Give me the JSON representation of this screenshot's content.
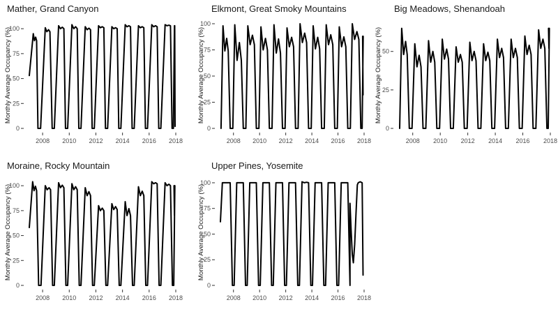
{
  "chart_data": [
    {
      "type": "line",
      "title": "Mather, Grand Canyon",
      "ylabel": "Monthly Average Occupancy (%)",
      "xlabel": "",
      "x_ticks": [
        "2008",
        "2010",
        "2012",
        "2014",
        "2016",
        "2018"
      ],
      "y_ticks": [
        "0",
        "25",
        "50",
        "75",
        "100"
      ],
      "xlim": [
        2007.0,
        2018.0
      ],
      "ylim": [
        0,
        105
      ],
      "series": [
        {
          "seasons": [
            {
              "rise": 2007.0,
              "top": 2007.3,
              "fall": 2007.55,
              "down": 2007.65,
              "peak": 95,
              "plateau": 88,
              "start_level": 53
            },
            {
              "rise": 2007.85,
              "top": 2008.2,
              "fall": 2008.55,
              "down": 2008.72,
              "peak": 101,
              "plateau": 97
            },
            {
              "rise": 2008.88,
              "top": 2009.2,
              "fall": 2009.6,
              "down": 2009.72,
              "peak": 103,
              "plateau": 100
            },
            {
              "rise": 2009.88,
              "top": 2010.2,
              "fall": 2010.6,
              "down": 2010.72,
              "peak": 104,
              "plateau": 100
            },
            {
              "rise": 2010.88,
              "top": 2011.2,
              "fall": 2011.6,
              "down": 2011.72,
              "peak": 102,
              "plateau": 99
            },
            {
              "rise": 2011.88,
              "top": 2012.2,
              "fall": 2012.6,
              "down": 2012.72,
              "peak": 103,
              "plateau": 101
            },
            {
              "rise": 2012.88,
              "top": 2013.2,
              "fall": 2013.6,
              "down": 2013.72,
              "peak": 102,
              "plateau": 100
            },
            {
              "rise": 2013.88,
              "top": 2014.2,
              "fall": 2014.6,
              "down": 2014.72,
              "peak": 104,
              "plateau": 102
            },
            {
              "rise": 2014.88,
              "top": 2015.2,
              "fall": 2015.6,
              "down": 2015.72,
              "peak": 103,
              "plateau": 101
            },
            {
              "rise": 2015.88,
              "top": 2016.2,
              "fall": 2016.6,
              "down": 2016.72,
              "peak": 104,
              "plateau": 102
            },
            {
              "rise": 2016.88,
              "top": 2017.2,
              "fall": 2017.6,
              "down": 2017.72,
              "peak": 104,
              "plateau": 103
            }
          ],
          "tail": {
            "start": 2017.72,
            "level": 103,
            "end": 2017.95,
            "end_value": 2
          }
        }
      ]
    },
    {
      "type": "line",
      "title": "Elkmont, Great Smoky Mountains",
      "ylabel": "Monthly Average Occupancy (%)",
      "xlabel": "",
      "x_ticks": [
        "2008",
        "2010",
        "2012",
        "2014",
        "2016",
        "2018"
      ],
      "y_ticks": [
        "0",
        "25",
        "50",
        "75",
        "100"
      ],
      "xlim": [
        2007.0,
        2018.0
      ],
      "ylim": [
        0,
        100
      ],
      "series": [
        {
          "seasons": [
            {
              "rise": 2007.05,
              "top": 2007.2,
              "fall": 2007.6,
              "down": 2007.75,
              "peak": 98,
              "plateau": 74
            },
            {
              "rise": 2007.95,
              "top": 2008.1,
              "fall": 2008.6,
              "down": 2008.75,
              "peak": 99,
              "plateau": 65
            },
            {
              "rise": 2008.95,
              "top": 2009.1,
              "fall": 2009.6,
              "down": 2009.75,
              "peak": 98,
              "plateau": 80
            },
            {
              "rise": 2009.95,
              "top": 2010.1,
              "fall": 2010.6,
              "down": 2010.75,
              "peak": 97,
              "plateau": 75
            },
            {
              "rise": 2010.95,
              "top": 2011.1,
              "fall": 2011.6,
              "down": 2011.75,
              "peak": 99,
              "plateau": 72
            },
            {
              "rise": 2011.95,
              "top": 2012.1,
              "fall": 2012.6,
              "down": 2012.75,
              "peak": 96,
              "plateau": 78
            },
            {
              "rise": 2012.95,
              "top": 2013.1,
              "fall": 2013.6,
              "down": 2013.75,
              "peak": 100,
              "plateau": 82
            },
            {
              "rise": 2013.95,
              "top": 2014.1,
              "fall": 2014.6,
              "down": 2014.75,
              "peak": 98,
              "plateau": 76
            },
            {
              "rise": 2014.95,
              "top": 2015.1,
              "fall": 2015.6,
              "down": 2015.75,
              "peak": 99,
              "plateau": 80
            },
            {
              "rise": 2015.95,
              "top": 2016.1,
              "fall": 2016.6,
              "down": 2016.75,
              "peak": 97,
              "plateau": 78
            },
            {
              "rise": 2016.95,
              "top": 2017.1,
              "fall": 2017.6,
              "down": 2017.75,
              "peak": 100,
              "plateau": 85
            }
          ],
          "tail": {
            "start": 2017.75,
            "level": 88,
            "end": 2017.92,
            "end_value": 32
          }
        }
      ]
    },
    {
      "type": "line",
      "title": "Big Meadows, Shenandoah",
      "ylabel": "Monthly Average Occupancy (%)",
      "xlabel": "",
      "x_ticks": [
        "2008",
        "2010",
        "2012",
        "2014",
        "2016",
        "2018"
      ],
      "y_ticks": [
        "0",
        "25",
        "50"
      ],
      "xlim": [
        2007.0,
        2018.0
      ],
      "ylim": [
        0,
        68
      ],
      "series": [
        {
          "seasons": [
            {
              "rise": 2007.05,
              "top": 2007.2,
              "fall": 2007.6,
              "down": 2007.75,
              "peak": 65,
              "plateau": 48
            },
            {
              "rise": 2007.95,
              "top": 2008.15,
              "fall": 2008.6,
              "down": 2008.75,
              "peak": 55,
              "plateau": 40
            },
            {
              "rise": 2008.95,
              "top": 2009.15,
              "fall": 2009.6,
              "down": 2009.75,
              "peak": 57,
              "plateau": 43
            },
            {
              "rise": 2009.95,
              "top": 2010.15,
              "fall": 2010.6,
              "down": 2010.75,
              "peak": 58,
              "plateau": 45
            },
            {
              "rise": 2010.95,
              "top": 2011.15,
              "fall": 2011.6,
              "down": 2011.75,
              "peak": 53,
              "plateau": 43
            },
            {
              "rise": 2011.95,
              "top": 2012.15,
              "fall": 2012.6,
              "down": 2012.75,
              "peak": 56,
              "plateau": 44
            },
            {
              "rise": 2012.95,
              "top": 2013.15,
              "fall": 2013.6,
              "down": 2013.75,
              "peak": 55,
              "plateau": 44
            },
            {
              "rise": 2013.95,
              "top": 2014.15,
              "fall": 2014.6,
              "down": 2014.75,
              "peak": 58,
              "plateau": 46
            },
            {
              "rise": 2014.95,
              "top": 2015.15,
              "fall": 2015.6,
              "down": 2015.75,
              "peak": 58,
              "plateau": 46
            },
            {
              "rise": 2015.95,
              "top": 2016.15,
              "fall": 2016.6,
              "down": 2016.75,
              "peak": 60,
              "plateau": 48
            },
            {
              "rise": 2016.95,
              "top": 2017.15,
              "fall": 2017.6,
              "down": 2017.75,
              "peak": 64,
              "plateau": 52
            }
          ],
          "tail": {
            "start": 2017.75,
            "level": 65,
            "end": 2017.9,
            "end_value": 52
          }
        }
      ]
    },
    {
      "type": "line",
      "title": "Moraine, Rocky Mountain",
      "ylabel": "Monthly Average Occupancy (%)",
      "xlabel": "",
      "x_ticks": [
        "2008",
        "2010",
        "2012",
        "2014",
        "2016",
        "2018"
      ],
      "y_ticks": [
        "0",
        "25",
        "50",
        "75",
        "100"
      ],
      "xlim": [
        2007.0,
        2018.0
      ],
      "ylim": [
        0,
        105
      ],
      "series": [
        {
          "seasons": [
            {
              "rise": 2007.0,
              "top": 2007.25,
              "fall": 2007.55,
              "down": 2007.7,
              "peak": 104,
              "plateau": 95,
              "start_level": 58
            },
            {
              "rise": 2007.88,
              "top": 2008.2,
              "fall": 2008.6,
              "down": 2008.75,
              "peak": 100,
              "plateau": 96
            },
            {
              "rise": 2008.88,
              "top": 2009.2,
              "fall": 2009.6,
              "down": 2009.75,
              "peak": 103,
              "plateau": 98
            },
            {
              "rise": 2009.88,
              "top": 2010.2,
              "fall": 2010.6,
              "down": 2010.75,
              "peak": 102,
              "plateau": 96
            },
            {
              "rise": 2010.88,
              "top": 2011.2,
              "fall": 2011.6,
              "down": 2011.75,
              "peak": 98,
              "plateau": 90
            },
            {
              "rise": 2011.88,
              "top": 2012.2,
              "fall": 2012.6,
              "down": 2012.75,
              "peak": 80,
              "plateau": 75
            },
            {
              "rise": 2012.88,
              "top": 2013.2,
              "fall": 2013.6,
              "down": 2013.75,
              "peak": 82,
              "plateau": 76
            },
            {
              "rise": 2013.88,
              "top": 2014.2,
              "fall": 2014.6,
              "down": 2014.75,
              "peak": 84,
              "plateau": 70
            },
            {
              "rise": 2014.88,
              "top": 2015.2,
              "fall": 2015.6,
              "down": 2015.75,
              "peak": 99,
              "plateau": 90
            },
            {
              "rise": 2015.88,
              "top": 2016.2,
              "fall": 2016.6,
              "down": 2016.75,
              "peak": 104,
              "plateau": 102
            },
            {
              "rise": 2016.88,
              "top": 2017.2,
              "fall": 2017.6,
              "down": 2017.75,
              "peak": 103,
              "plateau": 100
            }
          ],
          "tail": {
            "start": 2017.75,
            "level": 100,
            "end": 2017.9,
            "end_value": 70
          }
        }
      ]
    },
    {
      "type": "line",
      "title": "Upper Pines, Yosemite",
      "ylabel": "Monthly Average Occupancy (%)",
      "xlabel": "",
      "x_ticks": [
        "2008",
        "2010",
        "2012",
        "2014",
        "2016",
        "2018"
      ],
      "y_ticks": [
        "0",
        "25",
        "50",
        "75",
        "100"
      ],
      "xlim": [
        2007.0,
        2018.0
      ],
      "ylim": [
        0,
        102
      ],
      "series": [
        {
          "seasons": [
            {
              "rise": 2007.0,
              "top": 2007.15,
              "fall": 2007.75,
              "down": 2007.92,
              "peak": 100,
              "plateau": 100,
              "start_level": 62
            },
            {
              "rise": 2008.05,
              "top": 2008.25,
              "fall": 2008.75,
              "down": 2008.92,
              "peak": 100,
              "plateau": 100
            },
            {
              "rise": 2009.05,
              "top": 2009.25,
              "fall": 2009.75,
              "down": 2009.92,
              "peak": 100,
              "plateau": 100
            },
            {
              "rise": 2010.05,
              "top": 2010.25,
              "fall": 2010.75,
              "down": 2010.92,
              "peak": 100,
              "plateau": 100
            },
            {
              "rise": 2011.05,
              "top": 2011.25,
              "fall": 2011.75,
              "down": 2011.92,
              "peak": 100,
              "plateau": 100
            },
            {
              "rise": 2012.05,
              "top": 2012.25,
              "fall": 2012.75,
              "down": 2012.92,
              "peak": 100,
              "plateau": 100
            },
            {
              "rise": 2013.05,
              "top": 2013.25,
              "fall": 2013.75,
              "down": 2013.92,
              "peak": 101,
              "plateau": 100
            },
            {
              "rise": 2014.05,
              "top": 2014.25,
              "fall": 2014.75,
              "down": 2014.92,
              "peak": 100,
              "plateau": 100
            },
            {
              "rise": 2015.05,
              "top": 2015.25,
              "fall": 2015.75,
              "down": 2015.92,
              "peak": 100,
              "plateau": 100
            },
            {
              "rise": 2016.05,
              "top": 2016.25,
              "fall": 2016.75,
              "down": 2016.92,
              "peak": 100,
              "plateau": 100
            }
          ],
          "special": [
            [
              2016.92,
              80
            ],
            [
              2017.0,
              55
            ],
            [
              2017.1,
              30
            ],
            [
              2017.18,
              22
            ],
            [
              2017.28,
              40
            ],
            [
              2017.38,
              70
            ],
            [
              2017.48,
              98
            ],
            [
              2017.55,
              100
            ],
            [
              2017.7,
              101
            ],
            [
              2017.85,
              100
            ],
            [
              2017.88,
              60
            ],
            [
              2017.92,
              10
            ]
          ]
        }
      ]
    }
  ]
}
